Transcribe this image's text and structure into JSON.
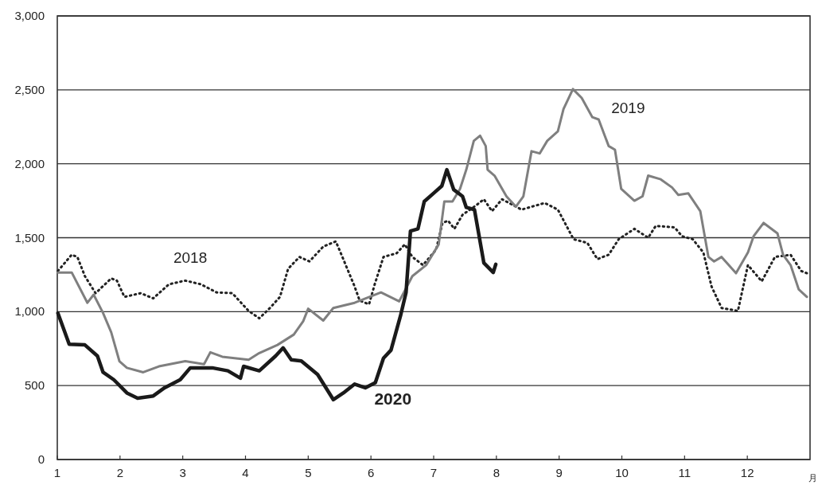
{
  "chart_data": {
    "type": "line",
    "xlabel": "月",
    "xlim": [
      1,
      13
    ],
    "ylim": [
      0,
      3000
    ],
    "xticks": [
      1,
      2,
      3,
      4,
      5,
      6,
      7,
      8,
      9,
      10,
      11,
      12
    ],
    "yticks": [
      {
        "value": 0,
        "label": "0"
      },
      {
        "value": 500,
        "label": "500"
      },
      {
        "value": 1000,
        "label": "1,000"
      },
      {
        "value": 1500,
        "label": "1,500"
      },
      {
        "value": 2000,
        "label": "2,000"
      },
      {
        "value": 2500,
        "label": "2,500"
      },
      {
        "value": 3000,
        "label": "3,000"
      }
    ],
    "grid": "y",
    "series": [
      {
        "name": "2018",
        "color": "#222222",
        "line_style": "dotted",
        "x": [
          1.01,
          1.23,
          1.32,
          1.44,
          1.61,
          1.86,
          1.95,
          2.07,
          2.33,
          2.53,
          2.78,
          3.04,
          3.29,
          3.54,
          3.79,
          4.05,
          4.22,
          4.39,
          4.55,
          4.68,
          4.86,
          5.02,
          5.24,
          5.44,
          5.53,
          5.74,
          5.82,
          5.97,
          6.06,
          6.2,
          6.41,
          6.54,
          6.66,
          6.83,
          7.04,
          7.14,
          7.23,
          7.33,
          7.46,
          7.68,
          7.8,
          7.93,
          8.09,
          8.27,
          8.4,
          8.77,
          8.98,
          9.23,
          9.45,
          9.61,
          9.79,
          9.95,
          10.2,
          10.42,
          10.54,
          10.84,
          10.96,
          11.13,
          11.3,
          11.43,
          11.59,
          11.85,
          12.01,
          12.23,
          12.44,
          12.69,
          12.86,
          12.95
        ],
        "values": [
          1275,
          1385,
          1370,
          1240,
          1125,
          1225,
          1210,
          1100,
          1125,
          1090,
          1185,
          1210,
          1185,
          1130,
          1125,
          1005,
          955,
          1025,
          1100,
          1290,
          1370,
          1340,
          1440,
          1475,
          1385,
          1170,
          1075,
          1050,
          1185,
          1370,
          1395,
          1455,
          1370,
          1315,
          1420,
          1600,
          1615,
          1560,
          1655,
          1720,
          1760,
          1680,
          1760,
          1720,
          1690,
          1735,
          1690,
          1490,
          1465,
          1355,
          1385,
          1490,
          1560,
          1500,
          1580,
          1570,
          1510,
          1490,
          1400,
          1170,
          1025,
          1005,
          1315,
          1205,
          1370,
          1385,
          1275,
          1260
        ]
      },
      {
        "name": "2019",
        "color": "#7f7f7f",
        "line_style": "solid",
        "x": [
          1.01,
          1.23,
          1.48,
          1.58,
          1.73,
          1.86,
          1.99,
          2.11,
          2.37,
          2.62,
          3.04,
          3.34,
          3.44,
          3.63,
          4.05,
          4.22,
          4.51,
          4.77,
          4.92,
          5.0,
          5.24,
          5.4,
          5.74,
          6.16,
          6.45,
          6.66,
          6.88,
          7.08,
          7.17,
          7.3,
          7.42,
          7.52,
          7.64,
          7.74,
          7.83,
          7.86,
          7.97,
          8.16,
          8.31,
          8.43,
          8.56,
          8.69,
          8.81,
          8.98,
          9.07,
          9.22,
          9.36,
          9.53,
          9.63,
          9.79,
          9.89,
          9.99,
          10.2,
          10.33,
          10.42,
          10.62,
          10.8,
          10.9,
          11.06,
          11.25,
          11.38,
          11.47,
          11.59,
          11.82,
          12.01,
          12.1,
          12.26,
          12.48,
          12.57,
          12.69,
          12.82,
          12.95
        ],
        "values": [
          1265,
          1265,
          1060,
          1115,
          990,
          860,
          665,
          620,
          590,
          630,
          665,
          645,
          725,
          695,
          675,
          720,
          775,
          845,
          935,
          1020,
          940,
          1025,
          1060,
          1130,
          1070,
          1240,
          1315,
          1455,
          1745,
          1745,
          1830,
          1960,
          2155,
          2190,
          2120,
          1960,
          1920,
          1780,
          1710,
          1780,
          2085,
          2070,
          2155,
          2220,
          2370,
          2505,
          2445,
          2315,
          2300,
          2120,
          2095,
          1830,
          1750,
          1780,
          1920,
          1895,
          1840,
          1790,
          1800,
          1680,
          1370,
          1340,
          1370,
          1260,
          1400,
          1510,
          1600,
          1530,
          1385,
          1315,
          1150,
          1100
        ]
      },
      {
        "name": "2020",
        "color": "#1a1a1a",
        "line_style": "solid",
        "x": [
          1.01,
          1.19,
          1.44,
          1.64,
          1.73,
          1.9,
          2.11,
          2.28,
          2.53,
          2.71,
          2.96,
          3.12,
          3.47,
          3.72,
          3.92,
          3.97,
          4.22,
          4.48,
          4.6,
          4.73,
          4.89,
          5.15,
          5.4,
          5.56,
          5.74,
          5.91,
          6.07,
          6.2,
          6.32,
          6.47,
          6.56,
          6.63,
          6.75,
          6.85,
          7.01,
          7.13,
          7.21,
          7.32,
          7.46,
          7.52,
          7.65,
          7.8,
          7.95,
          7.99
        ],
        "values": [
          990,
          780,
          775,
          700,
          590,
          540,
          450,
          415,
          430,
          485,
          540,
          620,
          620,
          600,
          550,
          630,
          600,
          700,
          755,
          675,
          667,
          575,
          405,
          450,
          510,
          485,
          520,
          685,
          740,
          970,
          1130,
          1545,
          1560,
          1745,
          1805,
          1850,
          1960,
          1825,
          1780,
          1705,
          1690,
          1330,
          1265,
          1320
        ]
      }
    ]
  }
}
